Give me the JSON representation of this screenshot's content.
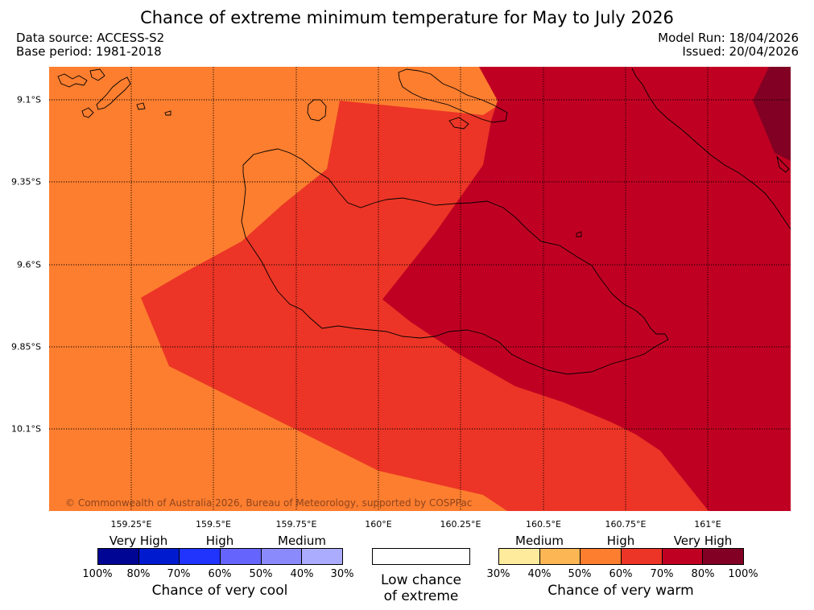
{
  "title": "Chance of extreme minimum temperature for May to July 2026",
  "data_source": "Data source: ACCESS-S2",
  "base_period": "Base period: 1981-2018",
  "model_run": "Model Run: 18/04/2026",
  "issued": "Issued: 20/04/2026",
  "copyright": "© Commonwealth of Australia 2026, Bureau of Meteorology, supported by COSPPac",
  "lon_labels": [
    "159.25°E",
    "159.5°E",
    "159.75°E",
    "160°E",
    "160.25°E",
    "160.5°E",
    "160.75°E",
    "161°E"
  ],
  "lat_labels": [
    "9.1°S",
    "9.35°S",
    "9.6°S",
    "9.85°S",
    "10.1°S"
  ],
  "colors": {
    "c50_60": "#fd7e2f",
    "c60_70": "#ec3526",
    "c70_80": "#c00022",
    "c80_100": "#820023"
  },
  "cool_scale": {
    "headers": [
      "Very High",
      "High",
      "Medium"
    ],
    "ticks": [
      "100%",
      "80%",
      "70%",
      "60%",
      "50%",
      "40%",
      "30%"
    ],
    "colors": [
      "#000594",
      "#001acf",
      "#2034fd",
      "#6565fd",
      "#8a8afd",
      "#acacff"
    ],
    "title": "Chance of very cool"
  },
  "low_chance": {
    "line1": "Low chance",
    "line2": "of extreme"
  },
  "warm_scale": {
    "headers": [
      "Medium",
      "High",
      "Very High"
    ],
    "ticks": [
      "30%",
      "40%",
      "50%",
      "60%",
      "70%",
      "80%",
      "100%"
    ],
    "colors": [
      "#feeb9c",
      "#fdb654",
      "#fd7e2f",
      "#ec3526",
      "#c00022",
      "#820023"
    ],
    "title": "Chance of very warm"
  }
}
